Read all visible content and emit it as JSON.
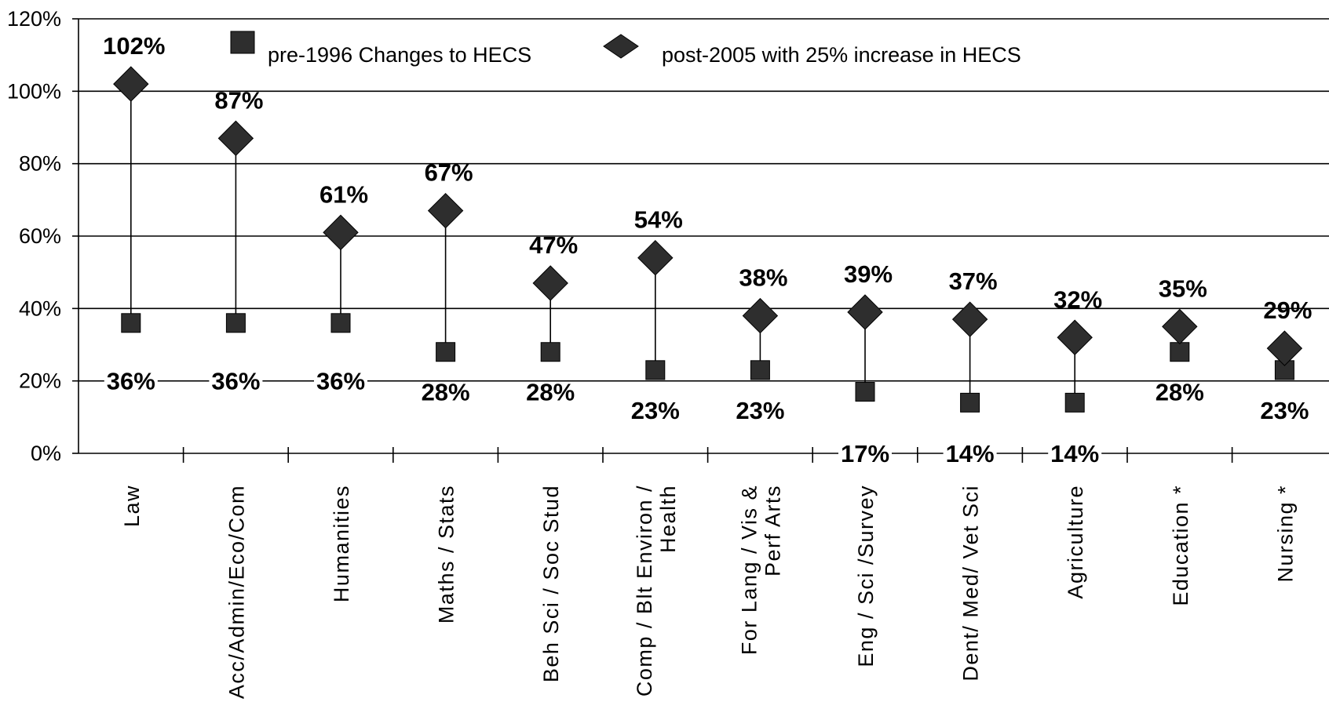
{
  "chart_data": {
    "type": "scatter",
    "categories": [
      [
        "Law"
      ],
      [
        "Acc/Admin/Eco/Com"
      ],
      [
        "Humanities"
      ],
      [
        "Maths / Stats"
      ],
      [
        "Beh Sci / Soc Stud"
      ],
      [
        "Comp / Blt Environ /",
        "Health"
      ],
      [
        "For Lang / Vis &",
        "Perf Arts"
      ],
      [
        "Eng / Sci /Survey"
      ],
      [
        "Dent/ Med/ Vet Sci"
      ],
      [
        "Agriculture"
      ],
      [
        "Education *"
      ],
      [
        "Nursing *"
      ]
    ],
    "series": [
      {
        "name": "pre-1996 Changes to HECS",
        "marker": "square",
        "values": [
          36,
          36,
          36,
          28,
          28,
          23,
          23,
          17,
          14,
          14,
          28,
          23
        ],
        "labels": [
          "36%",
          "36%",
          "36%",
          "28%",
          "28%",
          "23%",
          "23%",
          "17%",
          "14%",
          "14%",
          "28%",
          "23%"
        ]
      },
      {
        "name": "post-2005 with 25% increase in HECS",
        "marker": "diamond",
        "values": [
          102,
          87,
          61,
          67,
          47,
          54,
          38,
          39,
          37,
          32,
          35,
          29
        ],
        "labels": [
          "102%",
          "87%",
          "61%",
          "67%",
          "47%",
          "54%",
          "38%",
          "39%",
          "37%",
          "32%",
          "35%",
          "29%"
        ]
      }
    ],
    "ylim": [
      0,
      120
    ],
    "yticks": [
      0,
      20,
      40,
      60,
      80,
      100,
      120
    ],
    "ytick_labels": [
      "0%",
      "20%",
      "40%",
      "60%",
      "80%",
      "100%",
      "120%"
    ],
    "grid": true,
    "legend": "top",
    "colors": {
      "marker": "#2e2e2e",
      "line": "#000000"
    }
  }
}
